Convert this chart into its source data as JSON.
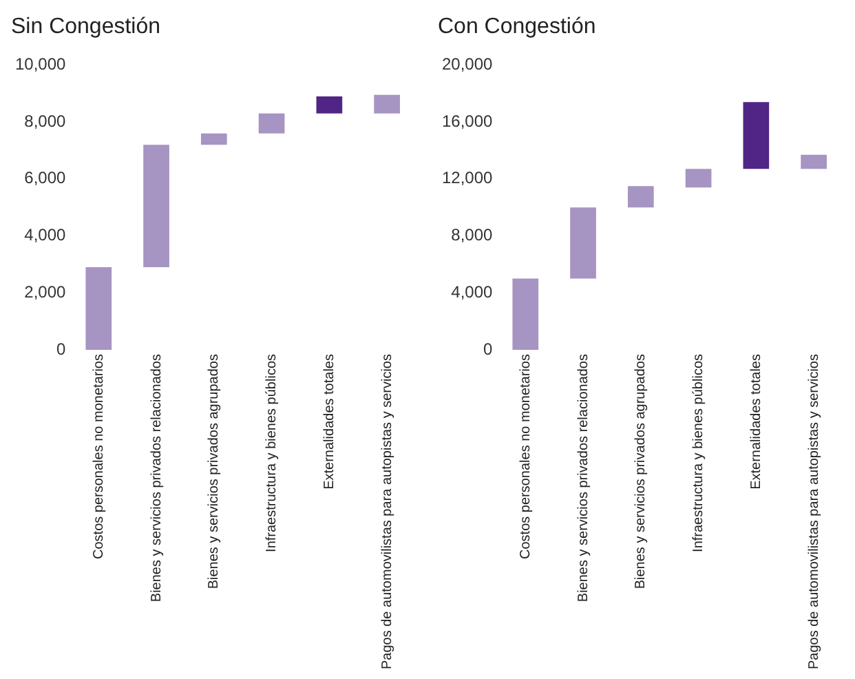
{
  "chart_data": [
    {
      "type": "bar",
      "title": "Sin Congestión",
      "categories": [
        "Costos personales no monetarios",
        "Bienes y servicios privados relacionados",
        "Bienes y servicios privados agrupados",
        "Infraestructura y bienes públicos",
        "Externalidades totales",
        "Pagos de automovilistas para autopistas y servicios"
      ],
      "values": [
        2900,
        4300,
        400,
        700,
        600,
        650
      ],
      "base": [
        0,
        2900,
        7200,
        7600,
        8300,
        8300
      ],
      "colors": [
        "#a694c2",
        "#a694c2",
        "#a694c2",
        "#a694c2",
        "#512586",
        "#a694c2"
      ],
      "ylim": [
        0,
        10000
      ],
      "yticks": [
        {
          "value": 0,
          "label": "0"
        },
        {
          "value": 2000,
          "label": "2,000"
        },
        {
          "value": 4000,
          "label": "4,000"
        },
        {
          "value": 6000,
          "label": "6,000"
        },
        {
          "value": 8000,
          "label": "8,000"
        },
        {
          "value": 10000,
          "label": "10,000"
        }
      ],
      "grid": false,
      "legend": false
    },
    {
      "type": "bar",
      "title": "Con Congestión",
      "categories": [
        "Costos personales no monetarios",
        "Bienes y servicios privados relacionados",
        "Bienes y servicios privados agrupados",
        "Infraestructura y bienes públicos",
        "Externalidades totales",
        "Pagos de automovilistas para autopistas y servicios"
      ],
      "values": [
        5000,
        5000,
        1500,
        1300,
        4700,
        1000
      ],
      "base": [
        0,
        5000,
        10000,
        11400,
        12700,
        12700
      ],
      "colors": [
        "#a694c2",
        "#a694c2",
        "#a694c2",
        "#a694c2",
        "#512586",
        "#a694c2"
      ],
      "ylim": [
        0,
        20000
      ],
      "yticks": [
        {
          "value": 0,
          "label": "0"
        },
        {
          "value": 4000,
          "label": "4,000"
        },
        {
          "value": 8000,
          "label": "8,000"
        },
        {
          "value": 12000,
          "label": "12,000"
        },
        {
          "value": 16000,
          "label": "16,000"
        },
        {
          "value": 20000,
          "label": "20,000"
        }
      ],
      "grid": false,
      "legend": false
    }
  ]
}
